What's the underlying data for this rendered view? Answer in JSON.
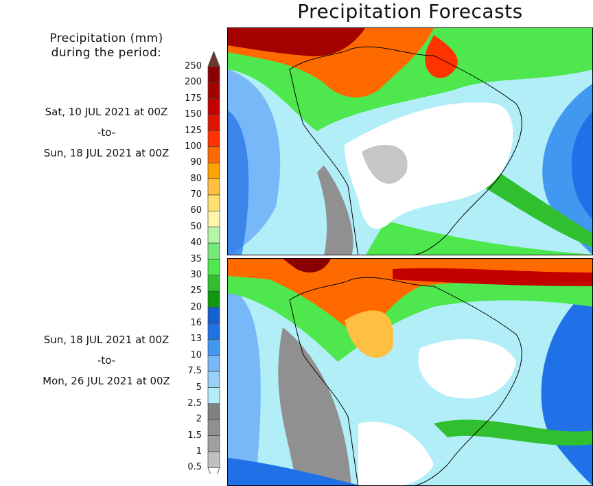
{
  "title": "Precipitation Forecasts",
  "legend": {
    "title_line1": "Precipitation (mm)",
    "title_line2": "during the period:",
    "levels": [
      "250",
      "200",
      "175",
      "150",
      "125",
      "100",
      "90",
      "80",
      "70",
      "60",
      "50",
      "40",
      "35",
      "30",
      "25",
      "20",
      "16",
      "13",
      "10",
      "7.5",
      "5",
      "2.5",
      "2",
      "1.5",
      "1",
      "0.5"
    ],
    "colors": [
      "#8b0000",
      "#a50000",
      "#c20000",
      "#dd1500",
      "#ff3300",
      "#ff6a00",
      "#ffa200",
      "#ffbf40",
      "#ffe070",
      "#fff5a8",
      "#b4f5a8",
      "#78e878",
      "#4ee84e",
      "#2fbf2f",
      "#0e9a0e",
      "#1560d0",
      "#2070e8",
      "#4098f0",
      "#78b8f8",
      "#98d0f8",
      "#b2eef8",
      "#808080",
      "#909090",
      "#a0a0a0",
      "#c0c0c0"
    ],
    "over_color": "#6b3a2e",
    "under_color": "#ffffff"
  },
  "periods": [
    {
      "start": "Sat, 10 JUL 2021 at 00Z",
      "sep": "-to-",
      "end": "Sun, 18 JUL 2021 at 00Z"
    },
    {
      "start": "Sun, 18 JUL 2021 at 00Z",
      "sep": "-to-",
      "end": "Mon, 26 JUL 2021 at 00Z"
    }
  ]
}
